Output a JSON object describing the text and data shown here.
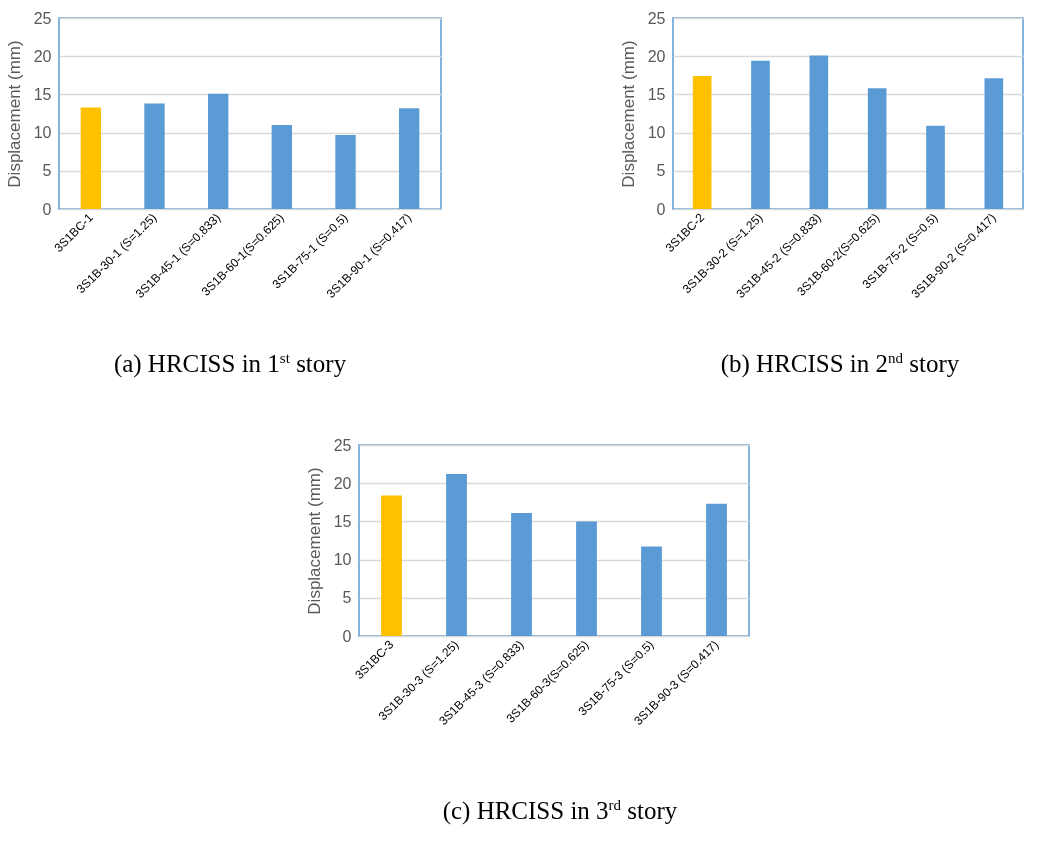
{
  "chart_data": [
    {
      "type": "bar",
      "title": "(a) HRCISS in 1$^{st}$ story",
      "ylabel": "Displacement (mm)",
      "categories": [
        "3S1BC-1",
        "3S1B-30-1 (S=1.25)",
        "3S1B-45-1 (S=0.833)",
        "3S1B-60-1(S=0.625)",
        "3S1B-75-1 (S=0.5)",
        "3S1B-90-1 (S=0.417)"
      ],
      "values": [
        13.3,
        13.8,
        15.1,
        11.0,
        9.7,
        13.2
      ],
      "colors": [
        "#ffc000",
        "#5b9bd5",
        "#5b9bd5",
        "#5b9bd5",
        "#5b9bd5",
        "#5b9bd5"
      ],
      "ylim": [
        0,
        25
      ],
      "yticks": [
        0,
        5,
        10,
        15,
        20,
        25
      ],
      "grid": "y"
    },
    {
      "type": "bar",
      "title": "(b) HRCISS in 2$^{nd}$ story",
      "ylabel": "Displacement (mm)",
      "categories": [
        "3S1BC-2",
        "3S1B-30-2 (S=1.25)",
        "3S1B-45-2 (S=0.833)",
        "3S1B-60-2(S=0.625)",
        "3S1B-75-2 (S=0.5)",
        "3S1B-90-2 (S=0.417)"
      ],
      "values": [
        17.4,
        19.4,
        20.1,
        15.8,
        10.9,
        17.1
      ],
      "colors": [
        "#ffc000",
        "#5b9bd5",
        "#5b9bd5",
        "#5b9bd5",
        "#5b9bd5",
        "#5b9bd5"
      ],
      "ylim": [
        0,
        25
      ],
      "yticks": [
        0,
        5,
        10,
        15,
        20,
        25
      ],
      "grid": "y"
    },
    {
      "type": "bar",
      "title": "(c) HRCISS in 3$^{rd}$ story",
      "ylabel": "Displacement (mm)",
      "categories": [
        "3S1BC-3",
        "3S1B-30-3 (S=1.25)",
        "3S1B-45-3 (S=0.833)",
        "3S1B-60-3(S=0.625)",
        "3S1B-75-3 (S=0.5)",
        "3S1B-90-3 (S=0.417)"
      ],
      "values": [
        18.4,
        21.2,
        16.1,
        15.0,
        11.7,
        17.3
      ],
      "colors": [
        "#ffc000",
        "#5b9bd5",
        "#5b9bd5",
        "#5b9bd5",
        "#5b9bd5",
        "#5b9bd5"
      ],
      "ylim": [
        0,
        25
      ],
      "yticks": [
        0,
        5,
        10,
        15,
        20,
        25
      ],
      "grid": "y"
    }
  ]
}
